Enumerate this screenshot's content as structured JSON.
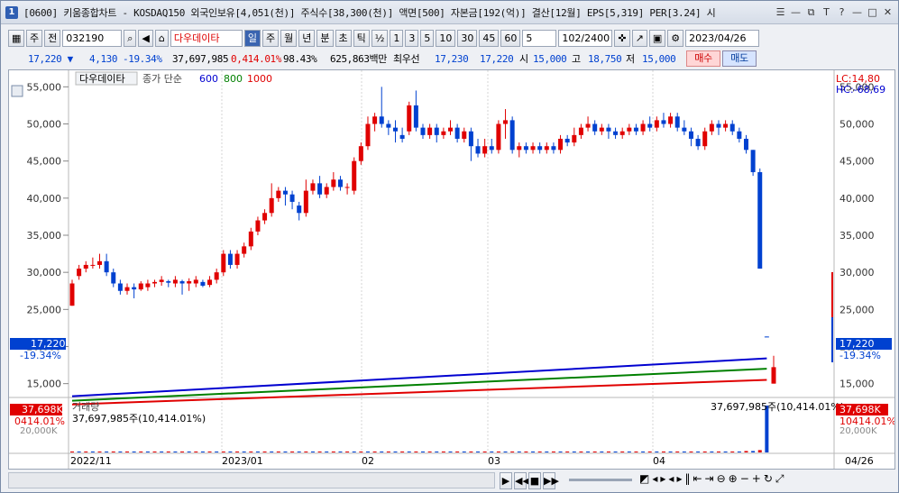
{
  "window": {
    "number": "1",
    "title": "[0600] 키움종합차트 - KOSDAQ150 외국인보유[4,051(천)] 주식수[38,300(천)] 액면[500] 자본금[192(억)] 결산[12월] EPS[5,319] PER[3.24] 시",
    "controls": [
      "☰",
      "—",
      "⧉",
      "T",
      "?",
      "—",
      "□",
      "✕"
    ]
  },
  "toolbar": {
    "week": "주",
    "all": "전",
    "code": "032190",
    "stock_name": "다우데이타",
    "periods": [
      "일",
      "주",
      "월",
      "년",
      "분",
      "초",
      "틱"
    ],
    "active_period": "일",
    "half": "½",
    "intervals": [
      "1",
      "3",
      "5",
      "10",
      "30",
      "45",
      "60"
    ],
    "interval_value": "5",
    "count": "102",
    "count_total": "/2400",
    "date": "2023/04/26"
  },
  "infobar": {
    "price": "17,220",
    "change": "4,130",
    "change_pct": "-19.34%",
    "volume": "37,697,985",
    "volume_pct": "0,414.01%",
    "ratio": "98.43%",
    "amount": "625,863백만",
    "best_ask_label": "최우선",
    "best_ask": "17,230",
    "best_bid": "17,220",
    "open_label": "시",
    "open": "15,000",
    "high_label": "고",
    "high": "18,750",
    "low_label": "저",
    "low": "15,000",
    "buy": "매수",
    "sell": "매도"
  },
  "price_panel": {
    "stock_label": "다우데이타",
    "ma_label": "종가 단순",
    "ma_periods": [
      "600",
      "800",
      "1000"
    ],
    "ma_colors": [
      "#0000d0",
      "#008000",
      "#e00000"
    ],
    "lc": "LC:14,80",
    "hc": "HC:-68,69",
    "y_ticks": [
      "55,000",
      "50,000",
      "45,000",
      "40,000",
      "35,000",
      "30,000",
      "25,000",
      "20,000",
      "15,000"
    ],
    "current_price": "17,220",
    "current_pct": "-19.34%"
  },
  "volume_panel": {
    "label": "거래량",
    "value_label": "37,697,985주(10,414.01%)",
    "right_label": "37,697,985주(10,414.01%)",
    "left_box": "37,698K",
    "left_pct": "0414.01%",
    "right_box": "37,698K",
    "right_pct": "10414.01%",
    "left_tick": "20,000K",
    "right_tick": "20,000K"
  },
  "x_axis": {
    "labels": [
      "2022/11",
      "2023/01",
      "02",
      "03",
      "04",
      "04/26"
    ]
  },
  "chart_data": {
    "type": "candlestick",
    "candles": [
      {
        "o": 25500,
        "c": 28500,
        "h": 29000,
        "l": 25500
      },
      {
        "o": 29500,
        "c": 30500,
        "h": 31000,
        "l": 29000
      },
      {
        "o": 30500,
        "c": 31000,
        "h": 31500,
        "l": 30000
      },
      {
        "o": 31000,
        "c": 31000,
        "h": 32000,
        "l": 30500
      },
      {
        "o": 31000,
        "c": 31500,
        "h": 32500,
        "l": 30500
      },
      {
        "o": 31500,
        "c": 30000,
        "h": 32500,
        "l": 29500
      },
      {
        "o": 30000,
        "c": 28500,
        "h": 30500,
        "l": 28000
      },
      {
        "o": 28500,
        "c": 27500,
        "h": 29000,
        "l": 27000
      },
      {
        "o": 27500,
        "c": 28000,
        "h": 28500,
        "l": 27000
      },
      {
        "o": 28000,
        "c": 27700,
        "h": 28500,
        "l": 26500
      },
      {
        "o": 27700,
        "c": 28500,
        "h": 28800,
        "l": 27500
      },
      {
        "o": 28000,
        "c": 28500,
        "h": 29000,
        "l": 27500
      },
      {
        "o": 28500,
        "c": 28700,
        "h": 29000,
        "l": 28000
      },
      {
        "o": 28700,
        "c": 29000,
        "h": 29500,
        "l": 28200
      },
      {
        "o": 28800,
        "c": 28600,
        "h": 29000,
        "l": 28000
      },
      {
        "o": 28500,
        "c": 29000,
        "h": 29500,
        "l": 28000
      },
      {
        "o": 28800,
        "c": 28500,
        "h": 29000,
        "l": 27000
      },
      {
        "o": 28500,
        "c": 28800,
        "h": 29200,
        "l": 27500
      },
      {
        "o": 28500,
        "c": 29000,
        "h": 29500,
        "l": 28000
      },
      {
        "o": 28700,
        "c": 28200,
        "h": 29000,
        "l": 28000
      },
      {
        "o": 28300,
        "c": 29000,
        "h": 29500,
        "l": 28000
      },
      {
        "o": 29000,
        "c": 30000,
        "h": 30500,
        "l": 28500
      },
      {
        "o": 30000,
        "c": 32500,
        "h": 33000,
        "l": 29500
      },
      {
        "o": 32500,
        "c": 31000,
        "h": 33000,
        "l": 30500
      },
      {
        "o": 31000,
        "c": 32500,
        "h": 33000,
        "l": 30500
      },
      {
        "o": 32500,
        "c": 33500,
        "h": 34000,
        "l": 32000
      },
      {
        "o": 33500,
        "c": 35500,
        "h": 36000,
        "l": 33000
      },
      {
        "o": 35500,
        "c": 37000,
        "h": 37500,
        "l": 35000
      },
      {
        "o": 37000,
        "c": 38000,
        "h": 38500,
        "l": 36500
      },
      {
        "o": 38000,
        "c": 40000,
        "h": 42000,
        "l": 37500
      },
      {
        "o": 40000,
        "c": 41000,
        "h": 41500,
        "l": 39500
      },
      {
        "o": 41000,
        "c": 40500,
        "h": 41500,
        "l": 39000
      },
      {
        "o": 40500,
        "c": 39500,
        "h": 41000,
        "l": 38500
      },
      {
        "o": 39000,
        "c": 38000,
        "h": 39500,
        "l": 37000
      },
      {
        "o": 38000,
        "c": 41000,
        "h": 42500,
        "l": 37500
      },
      {
        "o": 41000,
        "c": 42000,
        "h": 42500,
        "l": 40500
      },
      {
        "o": 42000,
        "c": 40500,
        "h": 43000,
        "l": 40000
      },
      {
        "o": 40500,
        "c": 41500,
        "h": 42000,
        "l": 40000
      },
      {
        "o": 41500,
        "c": 42500,
        "h": 43500,
        "l": 41000
      },
      {
        "o": 42500,
        "c": 41500,
        "h": 43000,
        "l": 41000
      },
      {
        "o": 41500,
        "c": 41500,
        "h": 42000,
        "l": 40500
      },
      {
        "o": 41000,
        "c": 45000,
        "h": 45500,
        "l": 40500
      },
      {
        "o": 45000,
        "c": 47000,
        "h": 47500,
        "l": 44500
      },
      {
        "o": 47000,
        "c": 50000,
        "h": 51000,
        "l": 46500
      },
      {
        "o": 50000,
        "c": 51000,
        "h": 51500,
        "l": 49000
      },
      {
        "o": 51000,
        "c": 50000,
        "h": 55000,
        "l": 49500
      },
      {
        "o": 50000,
        "c": 49500,
        "h": 50500,
        "l": 48500
      },
      {
        "o": 49500,
        "c": 49000,
        "h": 50500,
        "l": 47500
      },
      {
        "o": 48500,
        "c": 48000,
        "h": 49500,
        "l": 47500
      },
      {
        "o": 49000,
        "c": 52500,
        "h": 53000,
        "l": 48500
      },
      {
        "o": 52500,
        "c": 49500,
        "h": 54500,
        "l": 49000
      },
      {
        "o": 49500,
        "c": 48500,
        "h": 50000,
        "l": 48000
      },
      {
        "o": 48500,
        "c": 49500,
        "h": 50000,
        "l": 48000
      },
      {
        "o": 49500,
        "c": 48500,
        "h": 50000,
        "l": 47500
      },
      {
        "o": 48500,
        "c": 49000,
        "h": 49500,
        "l": 48000
      },
      {
        "o": 49000,
        "c": 49500,
        "h": 50500,
        "l": 48500
      },
      {
        "o": 49500,
        "c": 48000,
        "h": 50000,
        "l": 47500
      },
      {
        "o": 48000,
        "c": 49000,
        "h": 49500,
        "l": 47500
      },
      {
        "o": 49000,
        "c": 47000,
        "h": 49500,
        "l": 45000
      },
      {
        "o": 47000,
        "c": 46000,
        "h": 48000,
        "l": 45500
      },
      {
        "o": 46000,
        "c": 47000,
        "h": 48000,
        "l": 45500
      },
      {
        "o": 47000,
        "c": 46500,
        "h": 48000,
        "l": 46000
      },
      {
        "o": 46500,
        "c": 50000,
        "h": 50500,
        "l": 46000
      },
      {
        "o": 50000,
        "c": 50500,
        "h": 52000,
        "l": 48000
      },
      {
        "o": 50500,
        "c": 46500,
        "h": 51000,
        "l": 46000
      },
      {
        "o": 46500,
        "c": 47000,
        "h": 47500,
        "l": 45500
      },
      {
        "o": 47000,
        "c": 46500,
        "h": 47500,
        "l": 46000
      },
      {
        "o": 46500,
        "c": 47000,
        "h": 47500,
        "l": 46000
      },
      {
        "o": 47000,
        "c": 46500,
        "h": 47500,
        "l": 46000
      },
      {
        "o": 46500,
        "c": 47000,
        "h": 47500,
        "l": 46000
      },
      {
        "o": 47000,
        "c": 46500,
        "h": 47500,
        "l": 46000
      },
      {
        "o": 46500,
        "c": 48000,
        "h": 48500,
        "l": 46000
      },
      {
        "o": 48000,
        "c": 47500,
        "h": 48500,
        "l": 47000
      },
      {
        "o": 47500,
        "c": 48500,
        "h": 49500,
        "l": 47000
      },
      {
        "o": 48500,
        "c": 49500,
        "h": 50000,
        "l": 48000
      },
      {
        "o": 49500,
        "c": 50000,
        "h": 51000,
        "l": 49000
      },
      {
        "o": 50000,
        "c": 49000,
        "h": 50500,
        "l": 48500
      },
      {
        "o": 49000,
        "c": 49500,
        "h": 50000,
        "l": 48500
      },
      {
        "o": 49500,
        "c": 49000,
        "h": 50000,
        "l": 48000
      },
      {
        "o": 49000,
        "c": 48500,
        "h": 49500,
        "l": 48000
      },
      {
        "o": 48500,
        "c": 49000,
        "h": 49500,
        "l": 48000
      },
      {
        "o": 49000,
        "c": 49500,
        "h": 50000,
        "l": 48500
      },
      {
        "o": 49500,
        "c": 49000,
        "h": 50000,
        "l": 48500
      },
      {
        "o": 49000,
        "c": 50000,
        "h": 50500,
        "l": 48500
      },
      {
        "o": 50000,
        "c": 49500,
        "h": 51000,
        "l": 49000
      },
      {
        "o": 49500,
        "c": 50500,
        "h": 51000,
        "l": 49000
      },
      {
        "o": 50500,
        "c": 50000,
        "h": 51500,
        "l": 49500
      },
      {
        "o": 50000,
        "c": 51000,
        "h": 51500,
        "l": 49500
      },
      {
        "o": 51000,
        "c": 49500,
        "h": 51500,
        "l": 49000
      },
      {
        "o": 49500,
        "c": 49000,
        "h": 50500,
        "l": 48500
      },
      {
        "o": 49000,
        "c": 48000,
        "h": 49500,
        "l": 47000
      },
      {
        "o": 48000,
        "c": 47000,
        "h": 48500,
        "l": 46500
      },
      {
        "o": 47000,
        "c": 49000,
        "h": 49500,
        "l": 46500
      },
      {
        "o": 49000,
        "c": 50000,
        "h": 50500,
        "l": 48500
      },
      {
        "o": 50000,
        "c": 49500,
        "h": 50500,
        "l": 48500
      },
      {
        "o": 49500,
        "c": 50000,
        "h": 50500,
        "l": 49000
      },
      {
        "o": 50000,
        "c": 49000,
        "h": 50500,
        "l": 48500
      },
      {
        "o": 49000,
        "c": 48000,
        "h": 49500,
        "l": 47500
      },
      {
        "o": 48000,
        "c": 46500,
        "h": 48500,
        "l": 46000
      },
      {
        "o": 46500,
        "c": 43500,
        "h": 46500,
        "l": 43000
      },
      {
        "o": 43500,
        "c": 30500,
        "h": 44000,
        "l": 30500
      },
      {
        "o": 21350,
        "c": 21300,
        "h": 21350,
        "l": 21300
      },
      {
        "o": 15000,
        "c": 17220,
        "h": 18750,
        "l": 15000
      }
    ],
    "ma600": [
      13300,
      18400
    ],
    "ma800": [
      12700,
      17000
    ],
    "ma1000": [
      12200,
      15500
    ],
    "volumes_relative": [
      0.02,
      0.02,
      0.02,
      0.02,
      0.02,
      0.02,
      0.02,
      0.02,
      0.02,
      0.02,
      0.02,
      0.02,
      0.02,
      0.02,
      0.02,
      0.02,
      0.02,
      0.02,
      0.02,
      0.02,
      0.02,
      0.02,
      0.02,
      0.02,
      0.02,
      0.02,
      0.02,
      0.02,
      0.02,
      0.02,
      0.02,
      0.02,
      0.02,
      0.02,
      0.02,
      0.02,
      0.02,
      0.02,
      0.02,
      0.02,
      0.02,
      0.02,
      0.02,
      0.02,
      0.02,
      0.02,
      0.02,
      0.02,
      0.02,
      0.02,
      0.02,
      0.02,
      0.02,
      0.02,
      0.02,
      0.02,
      0.02,
      0.02,
      0.02,
      0.02,
      0.02,
      0.02,
      0.02,
      0.02,
      0.02,
      0.02,
      0.02,
      0.02,
      0.02,
      0.02,
      0.02,
      0.02,
      0.02,
      0.02,
      0.02,
      0.02,
      0.02,
      0.02,
      0.02,
      0.02,
      0.02,
      0.02,
      0.02,
      0.02,
      0.02,
      0.02,
      0.02,
      0.02,
      0.02,
      0.02,
      0.02,
      0.02,
      0.02,
      0.02,
      0.02,
      0.02,
      0.02,
      0.02,
      0.03,
      0.03,
      0.05,
      1.0
    ],
    "ylim": [
      13500,
      56500
    ]
  }
}
